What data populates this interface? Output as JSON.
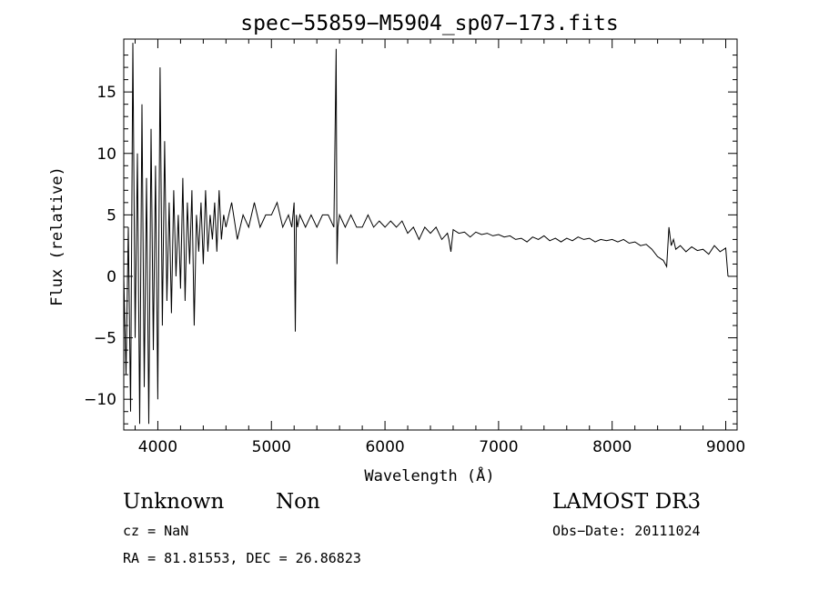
{
  "chart_data": {
    "type": "line",
    "title": "spec−55859−M5904_sp07−173.fits",
    "xlabel": "Wavelength (Å)",
    "ylabel": "Flux (relative)",
    "xlim": [
      3700,
      9100
    ],
    "ylim": [
      -12.5,
      19.3
    ],
    "x_ticks": [
      {
        "value": 4000,
        "label": "4000"
      },
      {
        "value": 5000,
        "label": "5000"
      },
      {
        "value": 6000,
        "label": "6000"
      },
      {
        "value": 7000,
        "label": "7000"
      },
      {
        "value": 8000,
        "label": "8000"
      },
      {
        "value": 9000,
        "label": "9000"
      }
    ],
    "y_ticks": [
      {
        "value": -10,
        "label": "−10"
      },
      {
        "value": -5,
        "label": "−5"
      },
      {
        "value": 0,
        "label": "0"
      },
      {
        "value": 5,
        "label": "5"
      },
      {
        "value": 10,
        "label": "10"
      },
      {
        "value": 15,
        "label": "15"
      }
    ],
    "grid": false,
    "series": [
      {
        "color": "#000000",
        "x": [
          3700,
          3720,
          3740,
          3760,
          3780,
          3800,
          3820,
          3840,
          3860,
          3880,
          3900,
          3920,
          3940,
          3960,
          3980,
          4000,
          4020,
          4040,
          4060,
          4080,
          4100,
          4120,
          4140,
          4160,
          4180,
          4200,
          4220,
          4240,
          4260,
          4280,
          4300,
          4320,
          4340,
          4360,
          4380,
          4400,
          4420,
          4440,
          4460,
          4480,
          4500,
          4520,
          4540,
          4560,
          4580,
          4600,
          4650,
          4700,
          4750,
          4800,
          4850,
          4900,
          4950,
          5000,
          5050,
          5100,
          5150,
          5180,
          5200,
          5210,
          5220,
          5230,
          5250,
          5300,
          5350,
          5400,
          5450,
          5500,
          5550,
          5570,
          5577,
          5585,
          5600,
          5650,
          5700,
          5750,
          5800,
          5850,
          5900,
          5950,
          6000,
          6050,
          6100,
          6150,
          6200,
          6250,
          6300,
          6350,
          6400,
          6450,
          6500,
          6550,
          6563,
          6580,
          6600,
          6650,
          6700,
          6750,
          6800,
          6850,
          6900,
          6950,
          7000,
          7050,
          7100,
          7150,
          7200,
          7250,
          7300,
          7350,
          7400,
          7450,
          7500,
          7550,
          7600,
          7650,
          7700,
          7750,
          7800,
          7850,
          7900,
          7950,
          8000,
          8050,
          8100,
          8150,
          8200,
          8250,
          8300,
          8350,
          8400,
          8450,
          8480,
          8500,
          8520,
          8540,
          8560,
          8600,
          8650,
          8700,
          8750,
          8800,
          8850,
          8900,
          8950,
          9000,
          9020
        ],
        "y": [
          0,
          -8,
          4,
          -11,
          19,
          -5,
          10,
          -12,
          14,
          -9,
          8,
          -12,
          12,
          -6,
          9,
          -10,
          17,
          -4,
          11,
          -2,
          6,
          -3,
          7,
          0,
          5,
          -1,
          8,
          -2,
          6,
          1,
          7,
          -4,
          5,
          2,
          6,
          1,
          7,
          2,
          5,
          3,
          6,
          2,
          7,
          3,
          5,
          4,
          6,
          3,
          5,
          4,
          6,
          4,
          5,
          5,
          6,
          4,
          5,
          4,
          6,
          -4.5,
          5,
          4,
          5,
          4,
          5,
          4,
          5,
          5,
          4,
          18.5,
          1,
          4,
          5,
          4,
          5,
          4,
          4,
          5,
          4,
          4.5,
          4,
          4.5,
          4,
          4.5,
          3.5,
          4,
          3,
          4,
          3.5,
          4,
          3,
          3.5,
          3,
          2,
          3.8,
          3.5,
          3.6,
          3.2,
          3.6,
          3.4,
          3.5,
          3.3,
          3.4,
          3.2,
          3.3,
          3,
          3.1,
          2.8,
          3.2,
          3,
          3.3,
          2.9,
          3.1,
          2.8,
          3.1,
          2.9,
          3.2,
          3.0,
          3.1,
          2.8,
          3.0,
          2.9,
          3.0,
          2.8,
          3.0,
          2.7,
          2.8,
          2.5,
          2.6,
          2.2,
          1.6,
          1.3,
          0.8,
          4,
          2.5,
          3,
          2.2,
          2.5,
          2.0,
          2.4,
          2.1,
          2.2,
          1.8,
          2.5,
          2.0,
          2.3,
          0
        ]
      }
    ]
  },
  "footer": {
    "object_class": "Unknown",
    "object_subclass": "Non",
    "cz": "cz = NaN",
    "coords": "RA =  81.81553, DEC =  26.86823",
    "survey": "LAMOST DR3",
    "obs_date": "Obs−Date: 20111024"
  }
}
